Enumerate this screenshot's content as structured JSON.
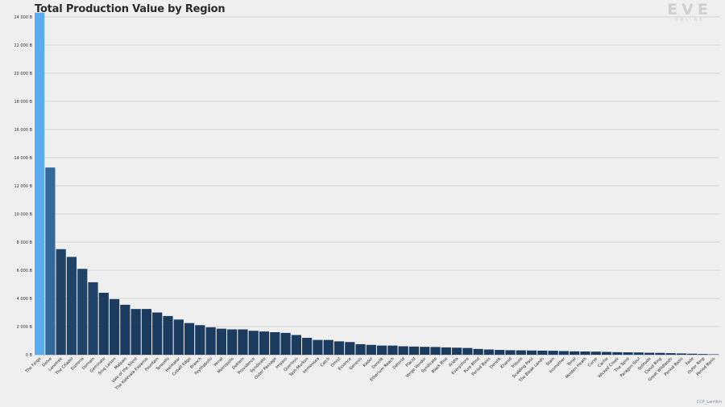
{
  "header": {
    "title": "Total Production Value by Region"
  },
  "logo": {
    "brand": "EVE",
    "sub": "ONLINE"
  },
  "credit": "CCP_Larrikin",
  "colors": {
    "highlight": "#5aadf0",
    "second": "#336a9d",
    "dark": "#1c3c5f",
    "grid": "#c8c8c8",
    "background": "#efefef"
  },
  "chart_data": {
    "type": "bar",
    "title": "Total Production Value by Region",
    "xlabel": "",
    "ylabel": "",
    "ylim": [
      0,
      24000
    ],
    "yticks": [
      0,
      2000,
      4000,
      6000,
      8000,
      10000,
      12000,
      14000,
      16000,
      18000,
      20000,
      22000,
      24000
    ],
    "ytick_labels": [
      "0 B",
      "2 000 B",
      "4 000 B",
      "6 000 B",
      "8 000 B",
      "10 000 B",
      "12 000 B",
      "14 000 B",
      "16 000 B",
      "18 000 B",
      "20 000 B",
      "22 000 B",
      "24 000 B"
    ],
    "grid": true,
    "categories": [
      "The Forge",
      "Delve",
      "Lonetrek",
      "The Citadel",
      "Esoteria",
      "Domain",
      "Geminate",
      "Sinq Laison",
      "Malpais",
      "Vale of the Silent",
      "The Kalevala Expanse",
      "Fountain",
      "Tenerifis",
      "Heimatar",
      "Cobalt Edge",
      "Branch",
      "Feythabolis",
      "Venal",
      "Metropolis",
      "Deklein",
      "Providence",
      "Syndicate",
      "Outer Passage",
      "Impass",
      "Querious",
      "Tash-Murkon",
      "Immensea",
      "Catch",
      "Omist",
      "Essence",
      "Genesis",
      "Kador",
      "Derelik",
      "Etherium Reach",
      "Detorid",
      "Placid",
      "Verge Vendor",
      "Syndicate",
      "Black Rise",
      "Aridia",
      "Everyshore",
      "Pure Blind",
      "Period Basis",
      "Derelik",
      "Khanid",
      "Tribute",
      "Scalding Pass",
      "The Bleak Lands",
      "Stain",
      "Insmother",
      "Tenal",
      "Molden Heath",
      "Curse",
      "Cache",
      "Wicked Creek",
      "The Spire",
      "Paragon Soul",
      "Solitude",
      "Cloud Ring",
      "Great Wildlands",
      "Period Basis",
      "Fade",
      "Outer Ring",
      "Period Basis"
    ],
    "values": [
      24300,
      13300,
      7500,
      6950,
      6100,
      5150,
      4400,
      3950,
      3550,
      3250,
      3250,
      3000,
      2750,
      2500,
      2250,
      2100,
      1950,
      1850,
      1800,
      1800,
      1700,
      1650,
      1600,
      1550,
      1400,
      1200,
      1050,
      1050,
      950,
      900,
      750,
      700,
      650,
      650,
      600,
      580,
      560,
      550,
      520,
      500,
      480,
      410,
      370,
      340,
      320,
      310,
      300,
      290,
      280,
      260,
      240,
      230,
      220,
      200,
      180,
      170,
      160,
      140,
      130,
      110,
      90,
      70,
      50,
      30
    ]
  }
}
